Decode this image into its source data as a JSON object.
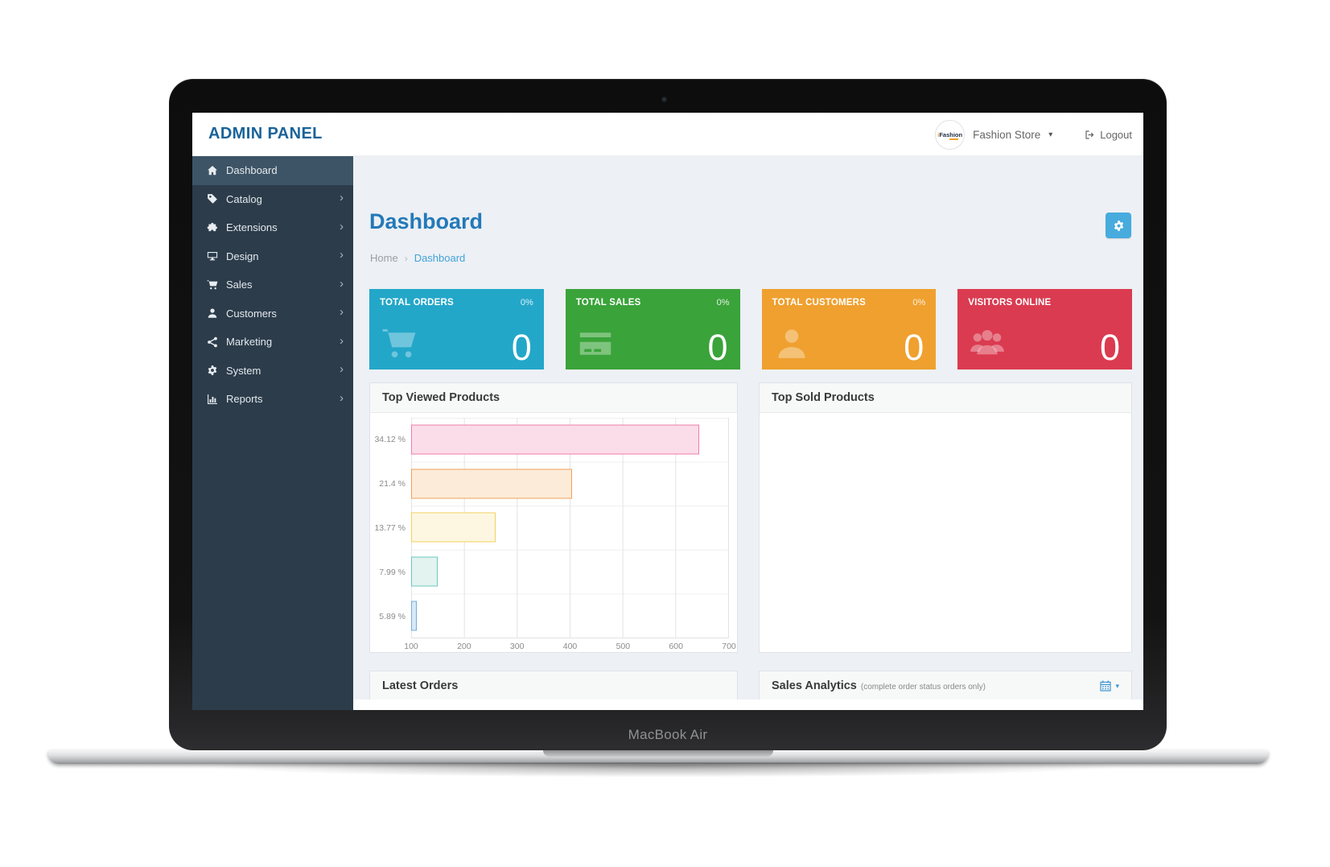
{
  "device": {
    "label": "MacBook Air"
  },
  "glyphs": {
    "chevron_right": "›",
    "caret_down": "▾",
    "breadcrumb_separator": "›"
  },
  "topbar": {
    "brand": "ADMIN PANEL",
    "logo_text_i": "i",
    "logo_text_rest": "Fashion",
    "store_name": "Fashion Store",
    "logout_label": "Logout"
  },
  "sidebar": {
    "items": [
      {
        "slug": "dashboard",
        "label": "Dashboard",
        "icon": "home-icon",
        "active": true,
        "chevron": false
      },
      {
        "slug": "catalog",
        "label": "Catalog",
        "icon": "tag-icon",
        "active": false,
        "chevron": true
      },
      {
        "slug": "extensions",
        "label": "Extensions",
        "icon": "puzzle-icon",
        "active": false,
        "chevron": true
      },
      {
        "slug": "design",
        "label": "Design",
        "icon": "monitor-icon",
        "active": false,
        "chevron": true
      },
      {
        "slug": "sales",
        "label": "Sales",
        "icon": "cart-icon",
        "active": false,
        "chevron": true
      },
      {
        "slug": "customers",
        "label": "Customers",
        "icon": "user-icon",
        "active": false,
        "chevron": true
      },
      {
        "slug": "marketing",
        "label": "Marketing",
        "icon": "share-icon",
        "active": false,
        "chevron": true
      },
      {
        "slug": "system",
        "label": "System",
        "icon": "gear-icon",
        "active": false,
        "chevron": true
      },
      {
        "slug": "reports",
        "label": "Reports",
        "icon": "bar-chart-icon",
        "active": false,
        "chevron": true
      }
    ]
  },
  "page": {
    "title": "Dashboard",
    "breadcrumb_home": "Home",
    "breadcrumb_current": "Dashboard"
  },
  "stat_cards": [
    {
      "slug": "total-orders",
      "label": "TOTAL ORDERS",
      "percent": "0%",
      "value": "0",
      "bg": "#23a7c9",
      "icon": "cart-icon"
    },
    {
      "slug": "total-sales",
      "label": "TOTAL SALES",
      "percent": "0%",
      "value": "0",
      "bg": "#3aa33a",
      "icon": "credit-card-icon"
    },
    {
      "slug": "total-customers",
      "label": "TOTAL CUSTOMERS",
      "percent": "0%",
      "value": "0",
      "bg": "#efa02f",
      "icon": "user-icon"
    },
    {
      "slug": "visitors-online",
      "label": "VISITORS ONLINE",
      "percent": "",
      "value": "0",
      "bg": "#da3b50",
      "icon": "users-icon"
    }
  ],
  "panels": {
    "top_viewed_title": "Top Viewed Products",
    "top_sold_title": "Top Sold Products",
    "latest_orders_title": "Latest Orders",
    "sales_analytics_title": "Sales Analytics",
    "sales_analytics_subtitle": "(complete order status orders only)"
  },
  "chart_data": {
    "type": "bar",
    "orientation": "horizontal",
    "title": "Top Viewed Products",
    "categories": [
      "34.12 %",
      "21.4 %",
      "13.77 %",
      "7.99 %",
      "5.89 %"
    ],
    "values": [
      645,
      405,
      260,
      151,
      111
    ],
    "xlabel": "",
    "ylabel": "",
    "xlim": [
      100,
      700
    ],
    "x_ticks": [
      "100",
      "200",
      "300",
      "400",
      "500",
      "600",
      "700"
    ],
    "grid": true,
    "legend": false,
    "bar_styles": [
      {
        "fill": "#fbdde9",
        "border": "#ee7ea6"
      },
      {
        "fill": "#fcebd9",
        "border": "#efa158"
      },
      {
        "fill": "#fdf7e1",
        "border": "#f2d05e"
      },
      {
        "fill": "#e2f3f0",
        "border": "#6cc8bd"
      },
      {
        "fill": "#d7e9f7",
        "border": "#77aed9"
      }
    ]
  },
  "colors": {
    "brand_blue": "#1a6399",
    "heading_blue": "#2379b9",
    "accent_blue": "#47abde",
    "breadcrumb_link": "#41a3d9",
    "sidebar_bg": "#2c3c4b",
    "sidebar_active_bg": "#3d5466",
    "card_teal": "#23a7c9",
    "card_green": "#3aa33a",
    "card_orange": "#efa02f",
    "card_red": "#da3b50"
  }
}
